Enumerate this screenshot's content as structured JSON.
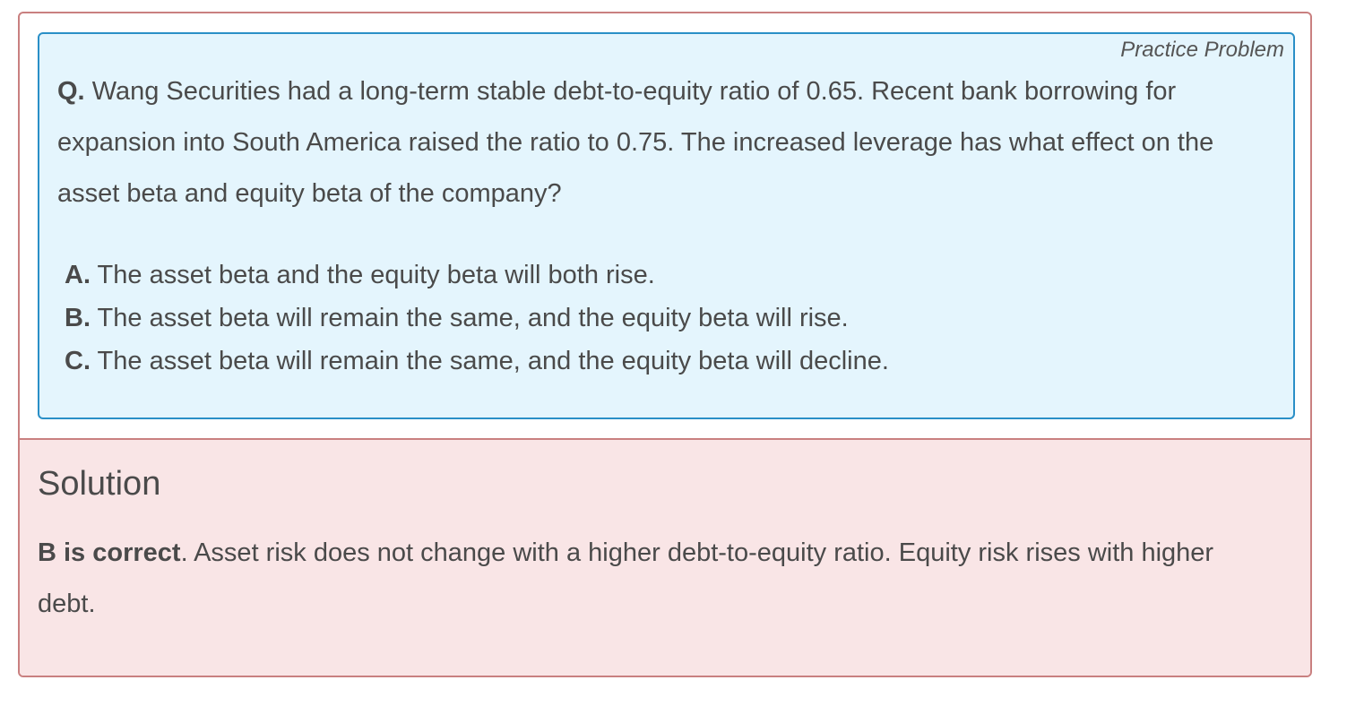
{
  "problem": {
    "tag": "Practice Problem",
    "question_label": "Q.",
    "question_text": "Wang Securities had a long-term stable debt-to-equity ratio of 0.65. Recent bank borrowing for expansion into South America raised the ratio to 0.75. The increased leverage has what effect on the asset beta and equity beta of the company?",
    "options": [
      {
        "label": "A.",
        "text": "The asset beta and the equity beta will both rise."
      },
      {
        "label": "B.",
        "text": "The asset beta will remain the same, and the equity beta will rise."
      },
      {
        "label": "C.",
        "text": "The asset beta will remain the same, and the equity beta will decline."
      }
    ]
  },
  "solution": {
    "title": "Solution",
    "answer_bold": "B is correct",
    "answer_text": ". Asset risk does not change with a higher debt-to-equity ratio. Equity risk rises with higher debt."
  }
}
